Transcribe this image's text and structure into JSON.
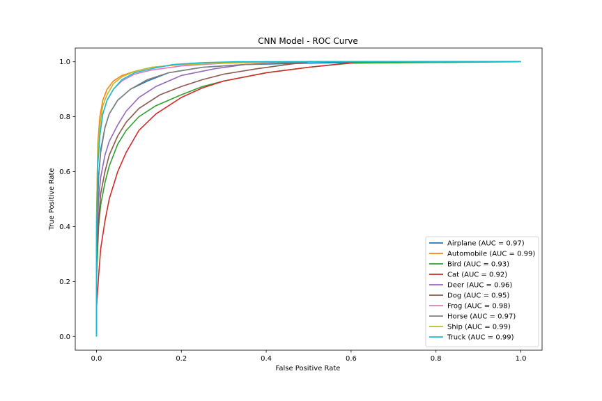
{
  "chart_data": {
    "type": "line",
    "title": "CNN Model - ROC Curve",
    "xlabel": "False Positive Rate",
    "ylabel": "True Positive Rate",
    "xlim": [
      -0.05,
      1.05
    ],
    "ylim": [
      -0.05,
      1.05
    ],
    "xticks": [
      0.0,
      0.2,
      0.4,
      0.6,
      0.8,
      1.0
    ],
    "yticks": [
      0.0,
      0.2,
      0.4,
      0.6,
      0.8,
      1.0
    ],
    "xtick_labels": [
      "0.0",
      "0.2",
      "0.4",
      "0.6",
      "0.8",
      "1.0"
    ],
    "ytick_labels": [
      "0.0",
      "0.2",
      "0.4",
      "0.6",
      "0.8",
      "1.0"
    ],
    "grid": false,
    "legend_position": "bottom-right",
    "series": [
      {
        "name": "Airplane (AUC = 0.97)",
        "color": "#1f77b4",
        "x": [
          0,
          0.0,
          0.005,
          0.01,
          0.02,
          0.03,
          0.05,
          0.08,
          0.12,
          0.17,
          0.25,
          0.35,
          0.5,
          0.74,
          1.0
        ],
        "y": [
          0,
          0.3,
          0.58,
          0.68,
          0.76,
          0.81,
          0.86,
          0.9,
          0.93,
          0.96,
          0.98,
          0.99,
          0.995,
          1.0,
          1.0
        ]
      },
      {
        "name": "Automobile (AUC = 0.99)",
        "color": "#ff7f0e",
        "x": [
          0,
          0.0,
          0.003,
          0.008,
          0.015,
          0.025,
          0.04,
          0.06,
          0.09,
          0.13,
          0.2,
          0.3,
          0.45,
          1.0
        ],
        "y": [
          0,
          0.4,
          0.7,
          0.8,
          0.86,
          0.9,
          0.93,
          0.95,
          0.965,
          0.98,
          0.99,
          0.995,
          1.0,
          1.0
        ]
      },
      {
        "name": "Bird (AUC = 0.93)",
        "color": "#2ca02c",
        "x": [
          0,
          0.0,
          0.005,
          0.01,
          0.02,
          0.03,
          0.05,
          0.07,
          0.1,
          0.14,
          0.2,
          0.25,
          0.3,
          0.4,
          0.45,
          0.5,
          0.6,
          1.0
        ],
        "y": [
          0,
          0.2,
          0.4,
          0.48,
          0.56,
          0.62,
          0.7,
          0.75,
          0.8,
          0.84,
          0.88,
          0.91,
          0.93,
          0.96,
          0.97,
          0.98,
          0.995,
          1.0
        ]
      },
      {
        "name": "Cat (AUC = 0.92)",
        "color": "#d62728",
        "x": [
          0,
          0.0,
          0.005,
          0.01,
          0.02,
          0.03,
          0.05,
          0.07,
          0.1,
          0.14,
          0.2,
          0.25,
          0.3,
          0.4,
          0.5,
          0.62,
          1.0
        ],
        "y": [
          0,
          0.1,
          0.22,
          0.32,
          0.42,
          0.5,
          0.6,
          0.67,
          0.75,
          0.81,
          0.87,
          0.905,
          0.93,
          0.96,
          0.98,
          1.0,
          1.0
        ]
      },
      {
        "name": "Deer (AUC = 0.96)",
        "color": "#9467bd",
        "x": [
          0,
          0.0,
          0.005,
          0.01,
          0.02,
          0.03,
          0.05,
          0.07,
          0.1,
          0.14,
          0.2,
          0.28,
          0.35,
          0.5,
          1.0
        ],
        "y": [
          0,
          0.28,
          0.5,
          0.58,
          0.66,
          0.71,
          0.77,
          0.82,
          0.87,
          0.91,
          0.95,
          0.975,
          0.99,
          1.0,
          1.0
        ]
      },
      {
        "name": "Dog (AUC = 0.95)",
        "color": "#8c564b",
        "x": [
          0,
          0.0,
          0.005,
          0.01,
          0.02,
          0.03,
          0.05,
          0.07,
          0.1,
          0.15,
          0.2,
          0.25,
          0.3,
          0.38,
          0.45,
          0.5,
          1.0
        ],
        "y": [
          0,
          0.25,
          0.42,
          0.52,
          0.6,
          0.66,
          0.73,
          0.78,
          0.83,
          0.88,
          0.91,
          0.935,
          0.955,
          0.975,
          0.99,
          1.0,
          1.0
        ]
      },
      {
        "name": "Frog (AUC = 0.98)",
        "color": "#e377c2",
        "x": [
          0,
          0.0,
          0.003,
          0.008,
          0.015,
          0.025,
          0.04,
          0.06,
          0.09,
          0.13,
          0.2,
          0.3,
          0.4,
          1.0
        ],
        "y": [
          0,
          0.38,
          0.64,
          0.74,
          0.81,
          0.86,
          0.9,
          0.93,
          0.955,
          0.97,
          0.985,
          0.995,
          1.0,
          1.0
        ]
      },
      {
        "name": "Horse (AUC = 0.97)",
        "color": "#7f7f7f",
        "x": [
          0,
          0.0,
          0.004,
          0.01,
          0.02,
          0.03,
          0.05,
          0.08,
          0.12,
          0.17,
          0.25,
          0.35,
          0.5,
          1.0
        ],
        "y": [
          0,
          0.34,
          0.56,
          0.67,
          0.76,
          0.81,
          0.86,
          0.9,
          0.935,
          0.96,
          0.98,
          0.99,
          1.0,
          1.0
        ]
      },
      {
        "name": "Ship (AUC = 0.99)",
        "color": "#bcbd22",
        "x": [
          0,
          0.0,
          0.003,
          0.008,
          0.015,
          0.025,
          0.04,
          0.06,
          0.09,
          0.13,
          0.2,
          0.3,
          0.4,
          1.0
        ],
        "y": [
          0,
          0.42,
          0.68,
          0.77,
          0.84,
          0.88,
          0.92,
          0.945,
          0.965,
          0.98,
          0.99,
          0.995,
          1.0,
          1.0
        ]
      },
      {
        "name": "Truck (AUC = 0.99)",
        "color": "#17becf",
        "x": [
          0,
          0.0,
          0.003,
          0.008,
          0.015,
          0.025,
          0.04,
          0.06,
          0.09,
          0.13,
          0.18,
          0.25,
          0.33,
          1.0
        ],
        "y": [
          0,
          0.35,
          0.62,
          0.73,
          0.81,
          0.86,
          0.9,
          0.935,
          0.96,
          0.975,
          0.99,
          0.997,
          1.0,
          1.0
        ]
      }
    ]
  }
}
